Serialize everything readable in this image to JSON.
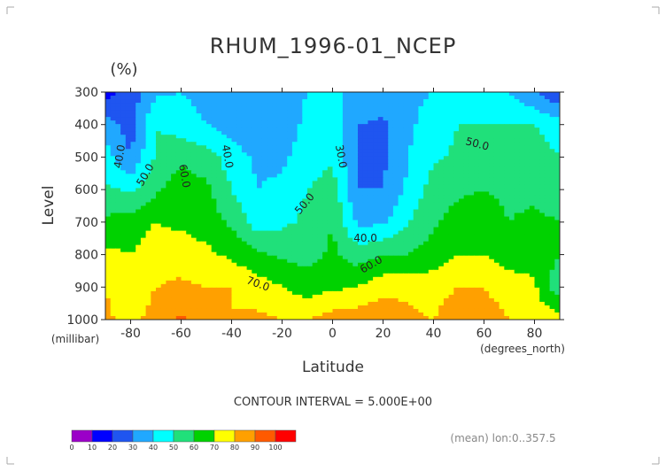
{
  "chart_data": {
    "type": "heatmap",
    "title": "RHUM_1996-01_NCEP",
    "units": "(%)",
    "xlabel": "Latitude",
    "ylabel": "Level",
    "xunits": "(degrees_north)",
    "yunits": "(millibar)",
    "xlim": [
      -90,
      90
    ],
    "ylim": [
      1000,
      300
    ],
    "y_reversed": true,
    "x_ticks": [
      -80,
      -60,
      -40,
      -20,
      0,
      20,
      40,
      60,
      80
    ],
    "y_ticks": [
      300,
      400,
      500,
      600,
      700,
      800,
      900,
      1000
    ],
    "x": [
      -90,
      -80,
      -70,
      -60,
      -50,
      -40,
      -30,
      -20,
      -10,
      0,
      10,
      20,
      30,
      40,
      50,
      60,
      70,
      80,
      90
    ],
    "y": [
      300,
      400,
      500,
      600,
      700,
      800,
      900,
      1000
    ],
    "z": [
      [
        15,
        25,
        38,
        40,
        36,
        35,
        35,
        36,
        40,
        40,
        40,
        35,
        38,
        40,
        45,
        45,
        40,
        30,
        20
      ],
      [
        35,
        25,
        50,
        45,
        40,
        35,
        32,
        35,
        42,
        45,
        30,
        28,
        38,
        45,
        50,
        50,
        50,
        50,
        45
      ],
      [
        45,
        30,
        52,
        58,
        55,
        45,
        38,
        38,
        45,
        48,
        30,
        28,
        40,
        48,
        52,
        55,
        55,
        55,
        50
      ],
      [
        52,
        48,
        58,
        65,
        62,
        50,
        40,
        42,
        50,
        55,
        30,
        30,
        42,
        55,
        58,
        60,
        58,
        58,
        55
      ],
      [
        62,
        65,
        70,
        68,
        66,
        58,
        45,
        48,
        52,
        60,
        38,
        38,
        50,
        58,
        65,
        65,
        60,
        62,
        60
      ],
      [
        72,
        70,
        75,
        75,
        72,
        68,
        62,
        58,
        56,
        62,
        55,
        60,
        60,
        65,
        70,
        70,
        66,
        66,
        60
      ],
      [
        80,
        72,
        80,
        82,
        80,
        80,
        75,
        70,
        65,
        68,
        70,
        76,
        78,
        75,
        80,
        80,
        74,
        72,
        52
      ],
      [
        82,
        76,
        85,
        92,
        85,
        80,
        82,
        80,
        80,
        85,
        86,
        88,
        82,
        80,
        88,
        86,
        80,
        74,
        76
      ]
    ],
    "contour_interval": "CONTOUR INTERVAL = 5.000E+00",
    "contour_labels": [
      "40.0",
      "50.0",
      "60.0",
      "40.0",
      "50.0",
      "70.0",
      "30.0",
      "40.0",
      "60.0",
      "50.0"
    ],
    "colorbar": {
      "ticks": [
        "0",
        "10",
        "20",
        "30",
        "40",
        "50",
        "60",
        "70",
        "80",
        "90",
        "100"
      ],
      "colors": [
        "#9b00c8",
        "#0000ff",
        "#1f55f0",
        "#20a8ff",
        "#00ffff",
        "#20e07a",
        "#00d200",
        "#ffff00",
        "#ffa000",
        "#ff5a00",
        "#ff0000"
      ]
    },
    "footer": "(mean) lon:0..357.5",
    "grid": false
  }
}
